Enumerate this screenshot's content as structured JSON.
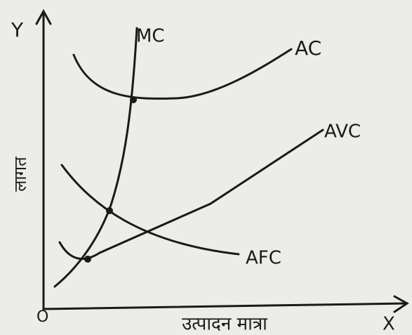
{
  "axes": {
    "y_symbol": "Y",
    "x_symbol": "X",
    "origin": "O",
    "y_label": "लागत",
    "x_label": "उत्पादन मात्रा"
  },
  "curves": {
    "mc": "MC",
    "ac": "AC",
    "avc": "AVC",
    "afc": "AFC"
  }
}
